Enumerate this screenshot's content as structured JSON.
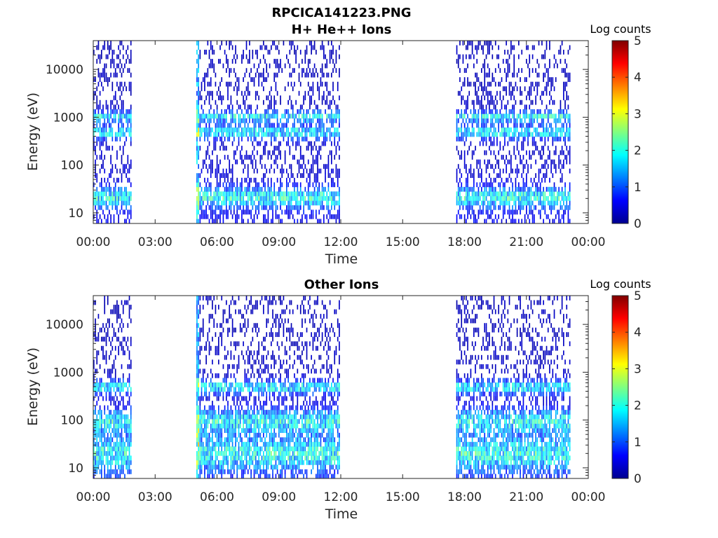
{
  "figure": {
    "title": "RPCICA141223.PNG"
  },
  "colormap": [
    "#00008f",
    "#0000ff",
    "#0080ff",
    "#00ffff",
    "#80ff80",
    "#ffff00",
    "#ff8000",
    "#ff0000",
    "#800000"
  ],
  "chart_data": [
    {
      "type": "heatmap",
      "title": "H+ He++ Ions",
      "xlabel": "Time",
      "ylabel": "Energy (eV)",
      "x_ticks": [
        "00:00",
        "03:00",
        "06:00",
        "09:00",
        "12:00",
        "15:00",
        "18:00",
        "21:00",
        "00:00"
      ],
      "xlim_hours": [
        0,
        24
      ],
      "y_scale": "log",
      "ylim": [
        6,
        40000
      ],
      "y_ticks": [
        "10",
        "100",
        "1000",
        "10000"
      ],
      "colorbar": {
        "label": "Log counts",
        "ticks": [
          "0",
          "1",
          "2",
          "3",
          "4",
          "5"
        ],
        "range": [
          0,
          5
        ]
      },
      "data_intervals_hours": [
        [
          0,
          1.8
        ],
        [
          5.0,
          11.9
        ],
        [
          17.6,
          23.1
        ]
      ],
      "dominant_bands_eV": [
        [
          15,
          30
        ],
        [
          400,
          600
        ],
        [
          900,
          1200
        ]
      ]
    },
    {
      "type": "heatmap",
      "title": "Other Ions",
      "xlabel": "Time",
      "ylabel": "Energy (eV)",
      "x_ticks": [
        "00:00",
        "03:00",
        "06:00",
        "09:00",
        "12:00",
        "15:00",
        "18:00",
        "21:00",
        "00:00"
      ],
      "xlim_hours": [
        0,
        24
      ],
      "y_scale": "log",
      "ylim": [
        6,
        40000
      ],
      "y_ticks": [
        "10",
        "100",
        "1000",
        "10000"
      ],
      "colorbar": {
        "label": "Log counts",
        "ticks": [
          "0",
          "1",
          "2",
          "3",
          "4",
          "5"
        ],
        "range": [
          0,
          5
        ]
      },
      "data_intervals_hours": [
        [
          0,
          1.8
        ],
        [
          5.0,
          11.9
        ],
        [
          17.6,
          23.1
        ]
      ],
      "dominant_bands_eV": [
        [
          10,
          40
        ],
        [
          60,
          150
        ],
        [
          400,
          600
        ]
      ]
    }
  ]
}
